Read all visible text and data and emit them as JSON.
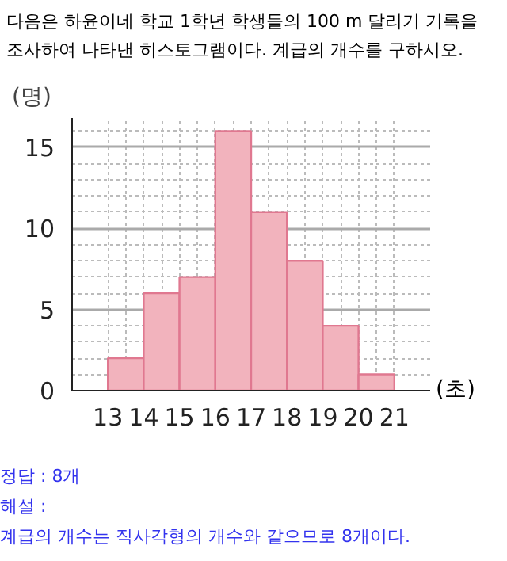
{
  "chart_data": {
    "type": "histogram",
    "title": "다음은 하윤이네 학교 1학년 학생들의 100 m 달리기 기록을 조사하여 나타낸 히스토그램이다. 계급의 개수를 구하시오.",
    "xlabel": "(초)",
    "ylabel": "(명)",
    "bins": [
      13,
      14,
      15,
      16,
      17,
      18,
      19,
      20,
      21
    ],
    "values": [
      2,
      6,
      7,
      16,
      11,
      8,
      4,
      1
    ],
    "color": "#f2b3bd",
    "xlim": [
      12,
      22
    ],
    "ylim": [
      0,
      16.8
    ],
    "xticks": [
      13,
      14,
      15,
      16,
      17,
      18,
      19,
      20,
      21
    ],
    "yticks": [
      0,
      5,
      10,
      15
    ],
    "grid": true,
    "annotations": [
      "정답 : 8개",
      "해설 :",
      "계급의 개수는 직사각형의 개수와 같으므로 8개이다."
    ]
  }
}
